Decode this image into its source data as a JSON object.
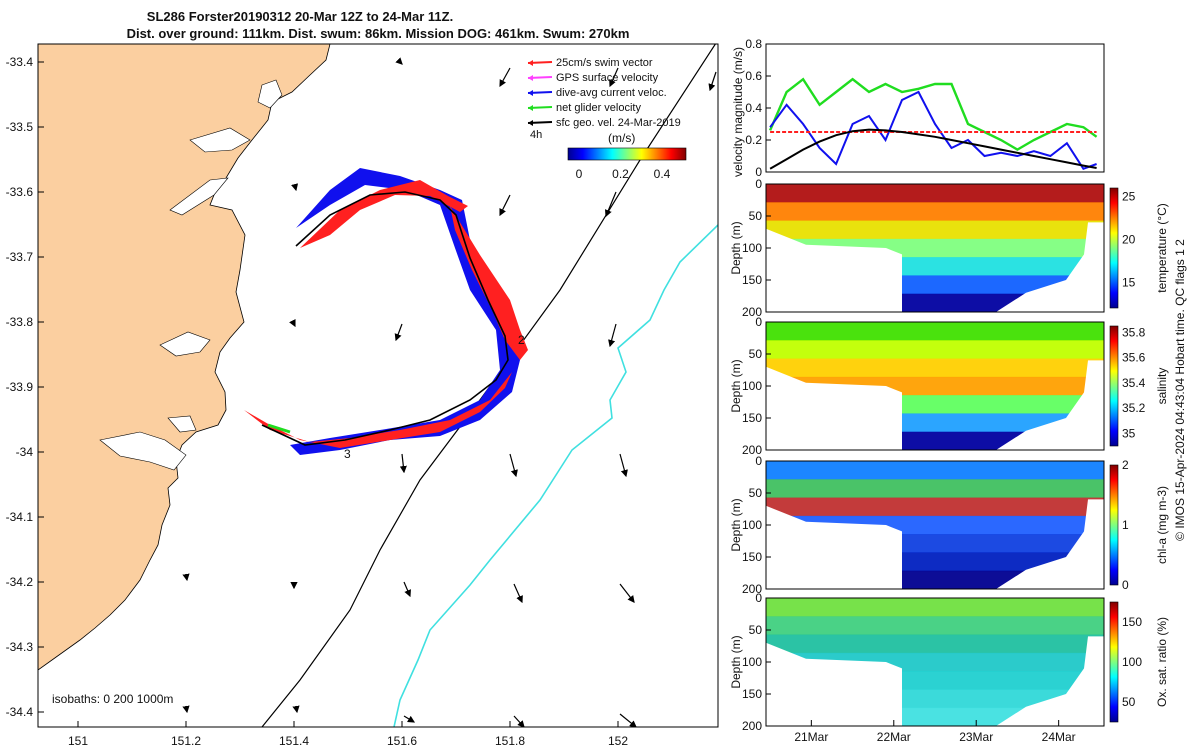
{
  "title_line1": "SL286 Forster20190312 20-Mar 12Z to 24-Mar 11Z.",
  "title_line2": "Dist. over ground: 111km. Dist. swum: 86km. Mission DOG: 461km. Swum: 270km",
  "side_note": "© IMOS 15-Apr-2024 04:43:04 Hobart time. QC flags 1 2",
  "colors": {
    "land": "#fbcfa0",
    "swim": "#ff2020",
    "gps": "#ff40ff",
    "current": "#1010ee",
    "net": "#20dd20",
    "sfc": "#000000",
    "isobath": "#40e0e0"
  },
  "map": {
    "legend": [
      {
        "label": "25cm/s swim vector",
        "color": "#ff2020",
        "icon": "arrow-left-icon"
      },
      {
        "label": "GPS surface velocity",
        "color": "#ff40ff",
        "icon": "arrow-left-icon"
      },
      {
        "label": "dive-avg current veloc.",
        "color": "#1010ee",
        "icon": "arrow-left-icon"
      },
      {
        "label": "net glider velocity",
        "color": "#20dd20",
        "icon": "arrow-left-icon"
      },
      {
        "label": "sfc geo. vel. 24-Mar-2019",
        "color": "#000000",
        "icon": "arrow-left-icon"
      }
    ],
    "time_step_label": "4h",
    "colorbar_title": "(m/s)",
    "colorbar_ticks": [
      "0",
      "0.2",
      "0.4"
    ],
    "isobaths_label": "isobaths: 0   200  1000m",
    "xticks": [
      "151",
      "151.2",
      "151.4",
      "151.6",
      "151.8",
      "152"
    ],
    "yticks": [
      "-33.4",
      "-33.5",
      "-33.6",
      "-33.7",
      "-33.8",
      "-33.9",
      "-34",
      "-34.1",
      "-34.2",
      "-34.3",
      "-34.4"
    ],
    "track_labels": [
      "2",
      "3"
    ]
  },
  "chart_data": [
    {
      "type": "line",
      "ylabel": "velocity magnitude (m/s)",
      "yticks": [
        "0",
        "0.2",
        "0.4",
        "0.6",
        "0.8"
      ],
      "ylim": [
        0,
        0.8
      ],
      "x": [
        20.5,
        20.7,
        20.9,
        21.1,
        21.3,
        21.5,
        21.7,
        21.9,
        22.1,
        22.3,
        22.5,
        22.7,
        22.9,
        23.1,
        23.3,
        23.5,
        23.7,
        23.9,
        24.1,
        24.3,
        24.46
      ],
      "series": [
        {
          "color": "#20dd20",
          "values": [
            0.26,
            0.5,
            0.58,
            0.42,
            0.5,
            0.58,
            0.5,
            0.55,
            0.5,
            0.52,
            0.55,
            0.55,
            0.3,
            0.25,
            0.2,
            0.14,
            0.2,
            0.25,
            0.3,
            0.28,
            0.22
          ]
        },
        {
          "color": "#1010ee",
          "values": [
            0.28,
            0.42,
            0.3,
            0.15,
            0.05,
            0.3,
            0.35,
            0.2,
            0.45,
            0.5,
            0.3,
            0.15,
            0.2,
            0.1,
            0.12,
            0.1,
            0.13,
            0.1,
            0.18,
            0.02,
            0.05
          ]
        },
        {
          "color": "#ff2020",
          "values": [
            0.25,
            0.25,
            0.25,
            0.25,
            0.25,
            0.25,
            0.25,
            0.25,
            0.25,
            0.25,
            0.25,
            0.25,
            0.25,
            0.25,
            0.25,
            0.25,
            0.25,
            0.25,
            0.25,
            0.25,
            0.25
          ]
        },
        {
          "color": "#000000",
          "values": [
            0.02,
            0.08,
            0.14,
            0.19,
            0.23,
            0.255,
            0.265,
            0.26,
            0.25,
            0.235,
            0.22,
            0.2,
            0.18,
            0.16,
            0.14,
            0.12,
            0.1,
            0.08,
            0.06,
            0.04,
            0.025
          ]
        }
      ]
    },
    {
      "type": "heatmap",
      "ylabel": "Depth (m)",
      "clabel": "temperature (°C)",
      "yticks": [
        "0",
        "50",
        "100",
        "150",
        "200"
      ],
      "ylim": [
        200,
        0
      ],
      "cticks": [
        "15",
        "20",
        "25"
      ],
      "crange": [
        12,
        26
      ]
    },
    {
      "type": "heatmap",
      "ylabel": "Depth (m)",
      "clabel": "salinity",
      "yticks": [
        "0",
        "50",
        "100",
        "150",
        "200"
      ],
      "ylim": [
        200,
        0
      ],
      "cticks": [
        "35",
        "35.2",
        "35.4",
        "35.6",
        "35.8"
      ],
      "crange": [
        34.9,
        35.85
      ]
    },
    {
      "type": "heatmap",
      "ylabel": "Depth (m)",
      "clabel": "chl-a (mg m-3)",
      "yticks": [
        "0",
        "50",
        "100",
        "150",
        "200"
      ],
      "ylim": [
        200,
        0
      ],
      "cticks": [
        "0",
        "1",
        "2"
      ],
      "crange": [
        0,
        2
      ]
    },
    {
      "type": "heatmap",
      "ylabel": "Depth (m)",
      "clabel": "Ox. sat. ratio (%)",
      "yticks": [
        "0",
        "50",
        "100",
        "150",
        "200"
      ],
      "ylim": [
        200,
        0
      ],
      "cticks": [
        "50",
        "100",
        "150"
      ],
      "crange": [
        25,
        175
      ]
    }
  ],
  "time_axis": [
    "21Mar",
    "22Mar",
    "23Mar",
    "24Mar"
  ]
}
